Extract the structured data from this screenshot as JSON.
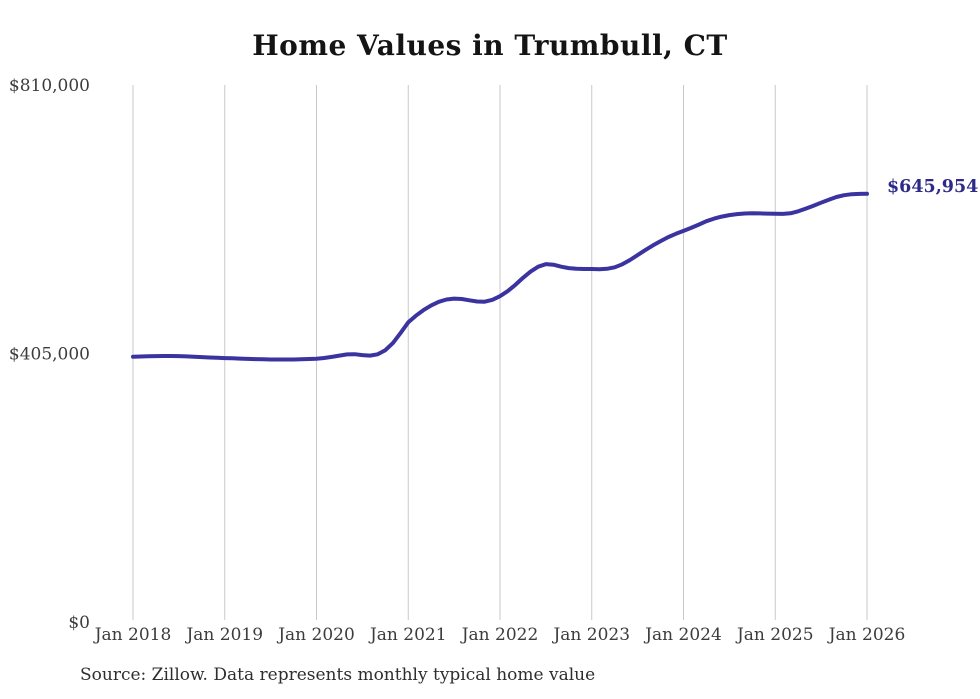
{
  "title": "Home Values in Trumbull, CT",
  "latest_value_label": "$645,954",
  "source_note": "Source: Zillow. Data represents monthly typical home value",
  "colors": {
    "line": "#3b33a0",
    "end_label": "#2d2a8a",
    "grid": "#c9c9c9",
    "axis_text": "#3c3c3c",
    "title_text": "#141414",
    "background": "#ffffff"
  },
  "chart_data": {
    "type": "line",
    "title": "Home Values in Trumbull, CT",
    "xlabel": "",
    "ylabel": "",
    "grid": "vertical-only",
    "legend": "none",
    "ylim": [
      0,
      810000
    ],
    "y_ticks": [
      {
        "label": "$810,000",
        "value": 810000
      },
      {
        "label": "$405,000",
        "value": 405000
      },
      {
        "label": "$0",
        "value": 0
      }
    ],
    "x_tick_labels": [
      "Jan 2018",
      "Jan 2019",
      "Jan 2020",
      "Jan 2021",
      "Jan 2022",
      "Jan 2023",
      "Jan 2024",
      "Jan 2025",
      "Jan 2026"
    ],
    "x_start": "2018-01",
    "x_interval": "month",
    "end_annotation": {
      "text": "$645,954",
      "value": 645954,
      "at": "2026-01"
    },
    "series": [
      {
        "name": "Monthly typical home value",
        "values": [
          400000,
          400400,
          400800,
          401100,
          401300,
          401300,
          401100,
          400700,
          400200,
          399600,
          399000,
          398500,
          398100,
          397700,
          397300,
          396900,
          396500,
          396200,
          396000,
          395900,
          395900,
          396000,
          396300,
          396700,
          397200,
          398200,
          399800,
          401800,
          403600,
          403900,
          402600,
          401900,
          403800,
          410000,
          421000,
          436000,
          452000,
          462000,
          470500,
          477500,
          483000,
          486500,
          487800,
          487200,
          485200,
          483400,
          483200,
          486000,
          491500,
          499000,
          508500,
          519000,
          528500,
          536000,
          539800,
          539000,
          536000,
          533800,
          532800,
          532500,
          532500,
          532200,
          532800,
          535000,
          539500,
          546000,
          553500,
          561000,
          568000,
          574500,
          580500,
          585500,
          590000,
          594500,
          599500,
          604500,
          608500,
          611500,
          613800,
          615300,
          616200,
          616500,
          616300,
          616000,
          615800,
          615500,
          616500,
          619500,
          623500,
          628000,
          632500,
          637000,
          641000,
          643800,
          645300,
          645800,
          645954
        ]
      }
    ]
  }
}
